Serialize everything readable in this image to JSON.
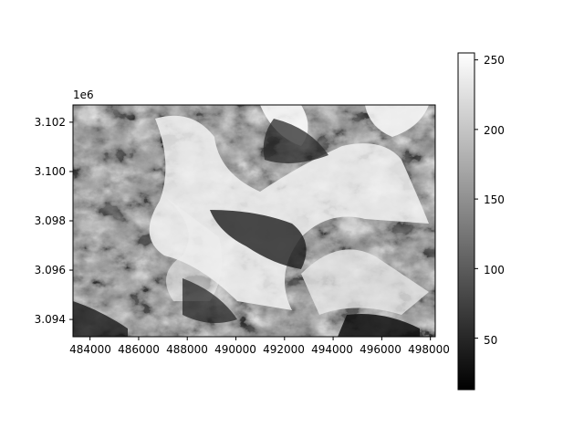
{
  "figure": {
    "offset_text": "1e6",
    "x_ticks": [
      "484000",
      "486000",
      "488000",
      "490000",
      "492000",
      "494000",
      "496000",
      "498000"
    ],
    "y_ticks": [
      "3.102",
      "3.100",
      "3.098",
      "3.096",
      "3.094"
    ],
    "colorbar_ticks": [
      "250",
      "200",
      "150",
      "100",
      "50"
    ],
    "colormap": "gray",
    "image_subject": "grayscale satellite image of glaciated mountain terrain"
  },
  "chart_data": {
    "type": "heatmap",
    "xlim": [
      483300,
      498200
    ],
    "ylim": [
      3093300,
      3102700
    ],
    "x_tick_values": [
      484000,
      486000,
      488000,
      490000,
      492000,
      494000,
      496000,
      498000
    ],
    "y_tick_values": [
      3102000,
      3100000,
      3098000,
      3096000,
      3094000
    ],
    "colorbar": {
      "range": [
        13,
        255
      ],
      "tick_values": [
        250,
        200,
        150,
        100,
        50
      ],
      "colors": {
        "low": "#000000",
        "high": "#ffffff"
      }
    }
  }
}
